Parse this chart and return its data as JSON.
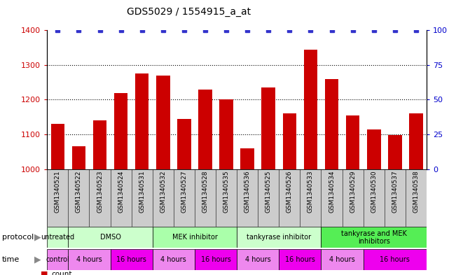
{
  "title": "GDS5029 / 1554915_a_at",
  "samples": [
    "GSM1340521",
    "GSM1340522",
    "GSM1340523",
    "GSM1340524",
    "GSM1340531",
    "GSM1340532",
    "GSM1340527",
    "GSM1340528",
    "GSM1340535",
    "GSM1340536",
    "GSM1340525",
    "GSM1340526",
    "GSM1340533",
    "GSM1340534",
    "GSM1340529",
    "GSM1340530",
    "GSM1340537",
    "GSM1340538"
  ],
  "counts": [
    1130,
    1065,
    1140,
    1220,
    1275,
    1270,
    1145,
    1230,
    1200,
    1060,
    1235,
    1160,
    1345,
    1260,
    1155,
    1115,
    1098,
    1160
  ],
  "percentiles": [
    100,
    100,
    100,
    100,
    100,
    100,
    100,
    100,
    100,
    100,
    100,
    100,
    100,
    100,
    100,
    100,
    100,
    100
  ],
  "bar_color": "#cc0000",
  "dot_color": "#3333cc",
  "ylim_left": [
    1000,
    1400
  ],
  "ylim_right": [
    0,
    100
  ],
  "yticks_left": [
    1000,
    1100,
    1200,
    1300,
    1400
  ],
  "yticks_right": [
    0,
    25,
    50,
    75,
    100
  ],
  "gridlines": [
    1100,
    1200,
    1300
  ],
  "tick_label_color_left": "#cc0000",
  "tick_label_color_right": "#0000cc",
  "background_color": "#ffffff",
  "proto_groups": [
    {
      "label": "untreated",
      "start": 0,
      "end": 1,
      "color": "#ccffcc"
    },
    {
      "label": "DMSO",
      "start": 1,
      "end": 5,
      "color": "#ccffcc"
    },
    {
      "label": "MEK inhibitor",
      "start": 5,
      "end": 9,
      "color": "#aaffaa"
    },
    {
      "label": "tankyrase inhibitor",
      "start": 9,
      "end": 13,
      "color": "#ccffcc"
    },
    {
      "label": "tankyrase and MEK\ninhibitors",
      "start": 13,
      "end": 18,
      "color": "#55ee55"
    }
  ],
  "time_groups": [
    {
      "label": "control",
      "start": 0,
      "end": 1,
      "color": "#ee88ee"
    },
    {
      "label": "4 hours",
      "start": 1,
      "end": 3,
      "color": "#ee88ee"
    },
    {
      "label": "16 hours",
      "start": 3,
      "end": 5,
      "color": "#ee00ee"
    },
    {
      "label": "4 hours",
      "start": 5,
      "end": 7,
      "color": "#ee88ee"
    },
    {
      "label": "16 hours",
      "start": 7,
      "end": 9,
      "color": "#ee00ee"
    },
    {
      "label": "4 hours",
      "start": 9,
      "end": 11,
      "color": "#ee88ee"
    },
    {
      "label": "16 hours",
      "start": 11,
      "end": 13,
      "color": "#ee00ee"
    },
    {
      "label": "4 hours",
      "start": 13,
      "end": 15,
      "color": "#ee88ee"
    },
    {
      "label": "16 hours",
      "start": 15,
      "end": 18,
      "color": "#ee00ee"
    }
  ],
  "xlabel_bg_color": "#cccccc"
}
